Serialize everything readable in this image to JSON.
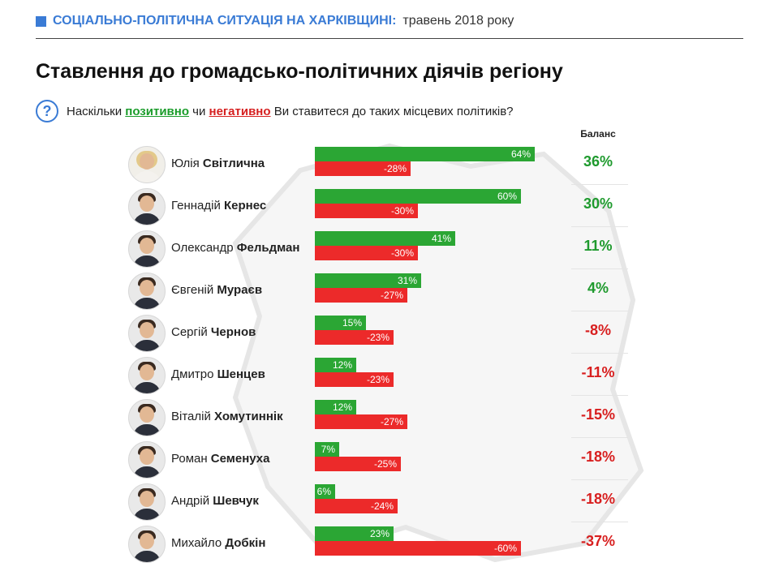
{
  "header": {
    "strong": "Соціально-політична ситуація на Харківщині:",
    "light": "травень 2018 року"
  },
  "title": "Ставлення до громадсько-політичних діячів регіону",
  "question": {
    "icon": "question-mark-icon",
    "prefix": "Наскільки",
    "positive": "позитивно",
    "middle": "чи",
    "negative": "негативно",
    "suffix": "Ви ставитеся до таких місцевих політиків?"
  },
  "colors": {
    "accent": "#3a7bd5",
    "positive": "#2ba634",
    "negative": "#ec2a2a",
    "balance_plus": "#1f9a2e",
    "balance_minus": "#d81f1f"
  },
  "chart_data": {
    "type": "bar",
    "orientation": "horizontal",
    "balance_label": "Баланс",
    "categories": [
      "Юлія Світлична",
      "Геннадій Кернес",
      "Олександр Фельдман",
      "Євгеній Мураєв",
      "Сергій Чернов",
      "Дмитро Шенцев",
      "Віталій Хомутиннік",
      "Роман Семенуха",
      "Андрій Шевчук",
      "Михайло Добкін"
    ],
    "people": [
      {
        "first": "Юлія",
        "last": "Світлична",
        "positive": 64,
        "negative": -28,
        "balance": 36,
        "avatar": "woman-portrait"
      },
      {
        "first": "Геннадій",
        "last": "Кернес",
        "positive": 60,
        "negative": -30,
        "balance": 30,
        "avatar": "man-portrait"
      },
      {
        "first": "Олександр",
        "last": "Фельдман",
        "positive": 41,
        "negative": -30,
        "balance": 11,
        "avatar": "man-portrait"
      },
      {
        "first": "Євгеній",
        "last": "Мураєв",
        "positive": 31,
        "negative": -27,
        "balance": 4,
        "avatar": "man-portrait"
      },
      {
        "first": "Сергій",
        "last": "Чернов",
        "positive": 15,
        "negative": -23,
        "balance": -8,
        "avatar": "man-portrait"
      },
      {
        "first": "Дмитро",
        "last": "Шенцев",
        "positive": 12,
        "negative": -23,
        "balance": -11,
        "avatar": "man-portrait"
      },
      {
        "first": "Віталій",
        "last": "Хомутиннік",
        "positive": 12,
        "negative": -27,
        "balance": -15,
        "avatar": "man-portrait"
      },
      {
        "first": "Роман",
        "last": "Семенуха",
        "positive": 7,
        "negative": -25,
        "balance": -18,
        "avatar": "man-portrait"
      },
      {
        "first": "Андрій",
        "last": "Шевчук",
        "positive": 6,
        "negative": -24,
        "balance": -18,
        "avatar": "man-portrait"
      },
      {
        "first": "Михайло",
        "last": "Добкін",
        "positive": 23,
        "negative": -60,
        "balance": -37,
        "avatar": "man-portrait"
      }
    ],
    "series": [
      {
        "values": [
          64,
          60,
          41,
          31,
          15,
          12,
          12,
          7,
          6,
          23
        ]
      },
      {
        "values": [
          -28,
          -30,
          -30,
          -27,
          -23,
          -23,
          -27,
          -25,
          -24,
          -60
        ]
      }
    ],
    "xlim": [
      0,
      100
    ],
    "grid": false,
    "legend": "none"
  }
}
